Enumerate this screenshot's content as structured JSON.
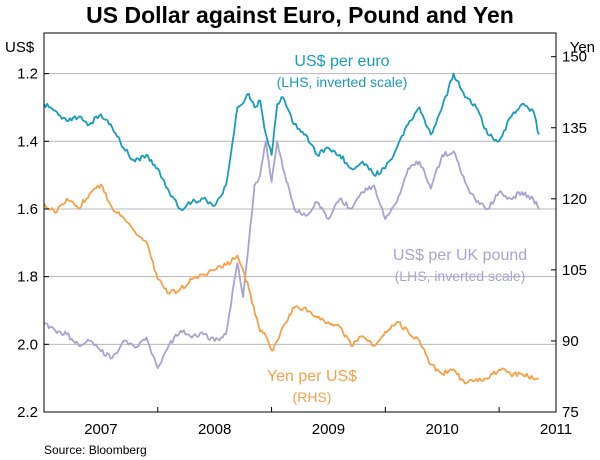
{
  "chart_data": {
    "type": "line",
    "title": "US Dollar against Euro, Pound and Yen",
    "source": "Source: Bloomberg",
    "left_axis": {
      "unit": "US$",
      "inverted": true,
      "range": [
        1.2,
        2.2
      ],
      "display_top": 1.08,
      "ticks": [
        "1.2",
        "1.4",
        "1.6",
        "1.8",
        "2.0",
        "2.2"
      ],
      "tick_values": [
        1.2,
        1.4,
        1.6,
        1.8,
        2.0,
        2.2
      ]
    },
    "right_axis": {
      "unit": "Yen",
      "range": [
        75,
        150
      ],
      "display_top": 155,
      "ticks": [
        "150",
        "135",
        "120",
        "105",
        "90",
        "75"
      ],
      "tick_values": [
        150,
        135,
        120,
        105,
        90,
        75
      ]
    },
    "x_axis": {
      "range": [
        2006.5,
        2011.0
      ],
      "years": [
        "2007",
        "2008",
        "2009",
        "2010",
        "2011"
      ],
      "year_label_positions": [
        2007.0,
        2008.0,
        2009.0,
        2010.0,
        2011.0
      ],
      "tick_values": [
        2006.5,
        2007.5,
        2008.5,
        2009.5,
        2010.5,
        2011.0
      ]
    },
    "grid": true,
    "series": [
      {
        "name": "US$ per euro",
        "axis": "left",
        "color": "#1a9bb8",
        "x": [
          2006.5,
          2006.6,
          2006.7,
          2006.8,
          2006.9,
          2007.0,
          2007.1,
          2007.2,
          2007.3,
          2007.4,
          2007.5,
          2007.6,
          2007.7,
          2007.8,
          2007.9,
          2008.0,
          2008.1,
          2008.2,
          2008.3,
          2008.35,
          2008.4,
          2008.45,
          2008.5,
          2008.55,
          2008.6,
          2008.7,
          2008.8,
          2008.9,
          2009.0,
          2009.1,
          2009.2,
          2009.3,
          2009.4,
          2009.5,
          2009.6,
          2009.7,
          2009.8,
          2009.9,
          2010.0,
          2010.1,
          2010.2,
          2010.3,
          2010.4,
          2010.5,
          2010.6,
          2010.7,
          2010.8,
          2010.85
        ],
        "values": [
          1.29,
          1.31,
          1.34,
          1.33,
          1.35,
          1.32,
          1.36,
          1.42,
          1.46,
          1.44,
          1.48,
          1.55,
          1.6,
          1.58,
          1.57,
          1.59,
          1.53,
          1.3,
          1.26,
          1.3,
          1.28,
          1.38,
          1.44,
          1.29,
          1.27,
          1.35,
          1.38,
          1.44,
          1.42,
          1.44,
          1.48,
          1.46,
          1.5,
          1.48,
          1.42,
          1.35,
          1.3,
          1.38,
          1.3,
          1.2,
          1.27,
          1.3,
          1.38,
          1.4,
          1.33,
          1.29,
          1.31,
          1.38
        ]
      },
      {
        "name": "US$ per UK pound",
        "axis": "left",
        "color": "#a8a4d0",
        "x": [
          2006.5,
          2006.6,
          2006.7,
          2006.8,
          2006.9,
          2007.0,
          2007.1,
          2007.2,
          2007.3,
          2007.4,
          2007.5,
          2007.6,
          2007.7,
          2007.8,
          2007.9,
          2008.0,
          2008.1,
          2008.2,
          2008.25,
          2008.3,
          2008.35,
          2008.4,
          2008.45,
          2008.5,
          2008.55,
          2008.6,
          2008.7,
          2008.8,
          2008.9,
          2009.0,
          2009.1,
          2009.2,
          2009.3,
          2009.4,
          2009.5,
          2009.6,
          2009.7,
          2009.8,
          2009.9,
          2010.0,
          2010.1,
          2010.2,
          2010.3,
          2010.4,
          2010.5,
          2010.6,
          2010.7,
          2010.8,
          2010.85
        ],
        "values": [
          1.94,
          1.96,
          1.97,
          2.0,
          1.99,
          2.02,
          2.04,
          1.99,
          2.01,
          1.98,
          2.07,
          2.0,
          1.96,
          1.98,
          1.97,
          1.99,
          1.97,
          1.76,
          1.86,
          1.7,
          1.53,
          1.5,
          1.4,
          1.52,
          1.4,
          1.48,
          1.6,
          1.62,
          1.58,
          1.63,
          1.57,
          1.6,
          1.55,
          1.53,
          1.63,
          1.58,
          1.48,
          1.46,
          1.54,
          1.44,
          1.43,
          1.52,
          1.58,
          1.6,
          1.55,
          1.57,
          1.55,
          1.57,
          1.6
        ]
      },
      {
        "name": "Yen per US$",
        "axis": "right",
        "color": "#f5a14a",
        "x": [
          2006.5,
          2006.6,
          2006.7,
          2006.8,
          2006.9,
          2007.0,
          2007.1,
          2007.2,
          2007.3,
          2007.4,
          2007.5,
          2007.6,
          2007.7,
          2007.8,
          2007.9,
          2008.0,
          2008.1,
          2008.2,
          2008.25,
          2008.3,
          2008.4,
          2008.45,
          2008.5,
          2008.55,
          2008.6,
          2008.7,
          2008.8,
          2008.9,
          2009.0,
          2009.1,
          2009.2,
          2009.3,
          2009.4,
          2009.5,
          2009.6,
          2009.7,
          2009.8,
          2009.9,
          2010.0,
          2010.1,
          2010.2,
          2010.3,
          2010.4,
          2010.5,
          2010.6,
          2010.7,
          2010.8,
          2010.85
        ],
        "values": [
          119,
          117,
          120,
          118,
          121,
          123,
          118,
          116,
          113,
          111,
          103,
          100,
          101,
          103,
          104,
          105,
          106,
          108,
          105,
          101,
          92,
          91,
          88,
          90,
          93,
          97,
          97,
          95,
          94,
          93,
          89,
          91,
          89,
          92,
          94,
          92,
          90,
          85,
          83,
          84,
          81,
          82,
          82,
          84,
          83,
          83,
          82,
          82
        ]
      }
    ],
    "annotations": [
      {
        "series": 0,
        "lines": [
          "US$ per euro",
          "(LHS, inverted scale)"
        ]
      },
      {
        "series": 1,
        "lines": [
          "US$ per UK pound",
          "(LHS, inverted scale)"
        ]
      },
      {
        "series": 2,
        "lines": [
          "Yen per US$",
          "(RHS)"
        ]
      }
    ]
  }
}
